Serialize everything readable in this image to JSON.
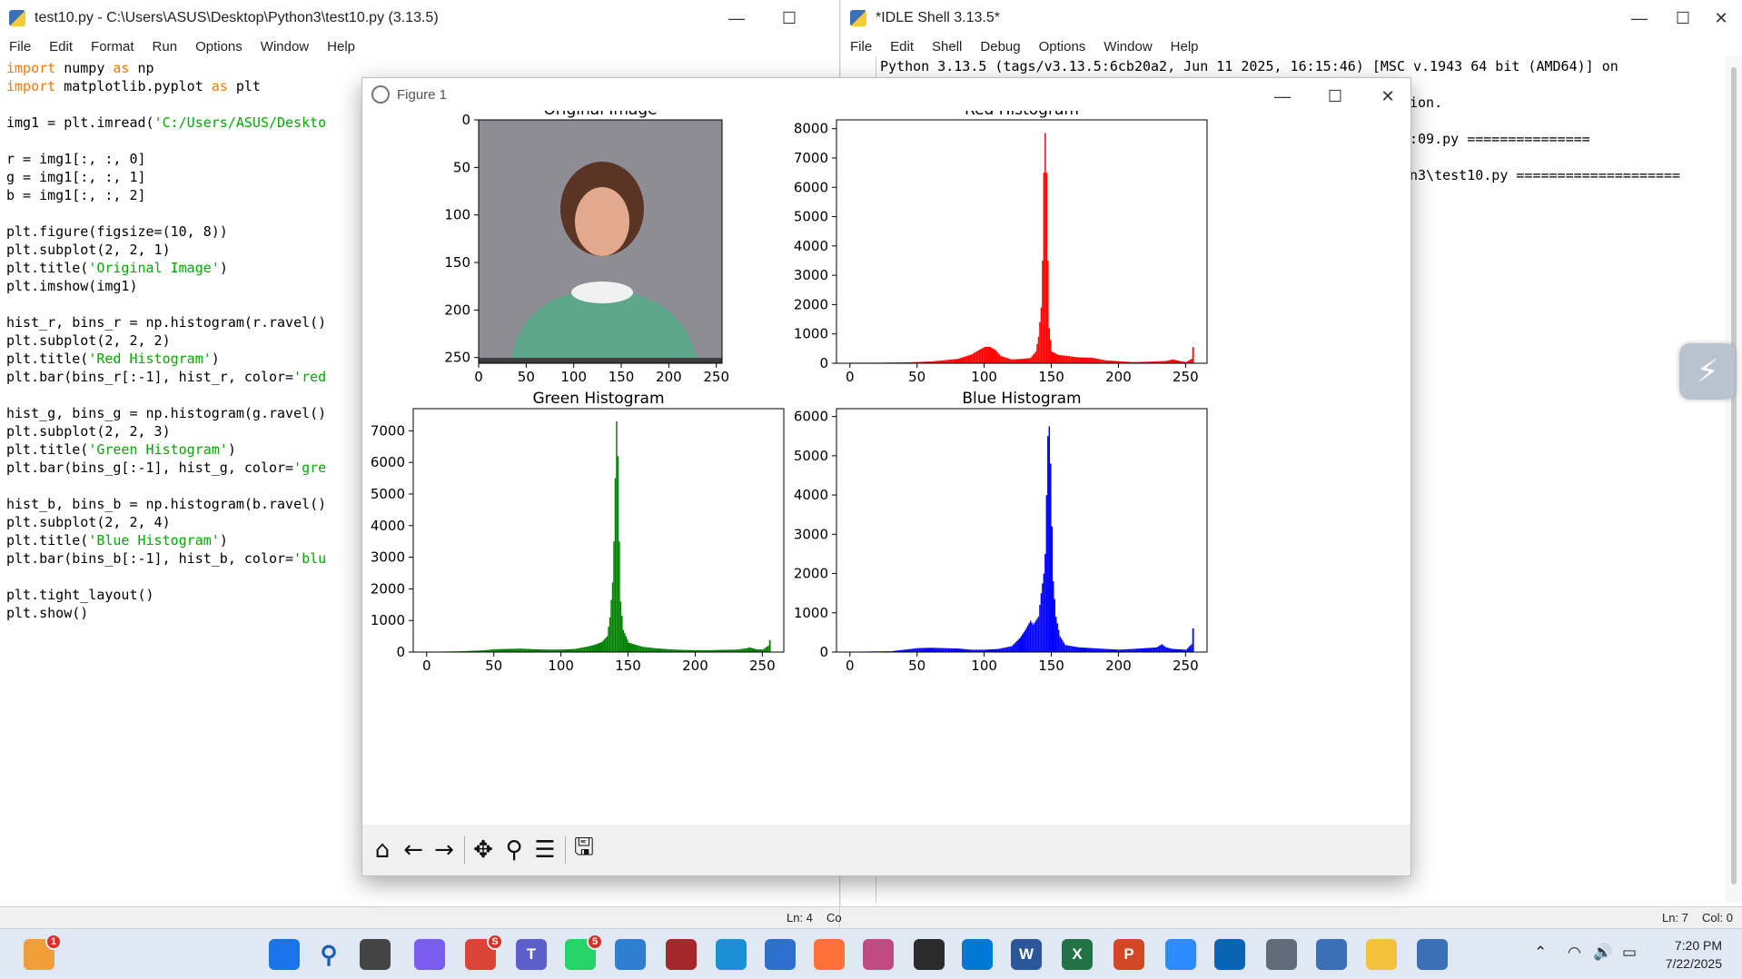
{
  "editor": {
    "title": "test10.py - C:\\Users\\ASUS\\Desktop\\Python3\\test10.py (3.13.5)",
    "menu": [
      "File",
      "Edit",
      "Format",
      "Run",
      "Options",
      "Window",
      "Help"
    ],
    "code_lines": [
      [
        {
          "t": "import",
          "c": "kw"
        },
        {
          "t": " numpy "
        },
        {
          "t": "as",
          "c": "kw"
        },
        {
          "t": " np"
        }
      ],
      [
        {
          "t": "import",
          "c": "kw"
        },
        {
          "t": " matplotlib.pyplot "
        },
        {
          "t": "as",
          "c": "kw"
        },
        {
          "t": " plt"
        }
      ],
      [],
      [
        {
          "t": "img1 = plt.imread("
        },
        {
          "t": "'C:/Users/ASUS/Deskto",
          "c": "str"
        }
      ],
      [],
      [
        {
          "t": "r = img1[:, :, 0]"
        }
      ],
      [
        {
          "t": "g = img1[:, :, 1]"
        }
      ],
      [
        {
          "t": "b = img1[:, :, 2]"
        }
      ],
      [],
      [
        {
          "t": "plt.figure(figsize=(10, 8))"
        }
      ],
      [
        {
          "t": "plt.subplot(2, 2, 1)"
        }
      ],
      [
        {
          "t": "plt.title("
        },
        {
          "t": "'Original Image'",
          "c": "str"
        },
        {
          "t": ")"
        }
      ],
      [
        {
          "t": "plt.imshow(img1)"
        }
      ],
      [],
      [
        {
          "t": "hist_r, bins_r = np.histogram(r.ravel()"
        }
      ],
      [
        {
          "t": "plt.subplot(2, 2, 2)"
        }
      ],
      [
        {
          "t": "plt.title("
        },
        {
          "t": "'Red Histogram'",
          "c": "str"
        },
        {
          "t": ")"
        }
      ],
      [
        {
          "t": "plt.bar(bins_r[:-1], hist_r, color="
        },
        {
          "t": "'red",
          "c": "str"
        }
      ],
      [],
      [
        {
          "t": "hist_g, bins_g = np.histogram(g.ravel()"
        }
      ],
      [
        {
          "t": "plt.subplot(2, 2, 3)"
        }
      ],
      [
        {
          "t": "plt.title("
        },
        {
          "t": "'Green Histogram'",
          "c": "str"
        },
        {
          "t": ")"
        }
      ],
      [
        {
          "t": "plt.bar(bins_g[:-1], hist_g, color="
        },
        {
          "t": "'gre",
          "c": "str"
        }
      ],
      [],
      [
        {
          "t": "hist_b, bins_b = np.histogram(b.ravel()"
        }
      ],
      [
        {
          "t": "plt.subplot(2, 2, 4)"
        }
      ],
      [
        {
          "t": "plt.title("
        },
        {
          "t": "'Blue Histogram'",
          "c": "str"
        },
        {
          "t": ")"
        }
      ],
      [
        {
          "t": "plt.bar(bins_b[:-1], hist_b, color="
        },
        {
          "t": "'blu",
          "c": "str"
        }
      ],
      [],
      [
        {
          "t": "plt.tight_layout()"
        }
      ],
      [
        {
          "t": "plt.show()"
        }
      ]
    ],
    "status_ln": "Ln: 4",
    "status_col": "Co"
  },
  "shell": {
    "title": "*IDLE Shell 3.13.5*",
    "menu": [
      "File",
      "Edit",
      "Shell",
      "Debug",
      "Options",
      "Window",
      "Help"
    ],
    "lines": [
      "Python 3.13.5 (tags/v3.13.5:6cb20a2, Jun 11 2025, 16:15:46) [MSC v.1943 64 bit (AMD64)] on",
      "ion.",
      ":09.py ===============",
      "n3\\test10.py ===================="
    ],
    "status_ln": "Ln: 7",
    "status_col": "Col: 0"
  },
  "figure": {
    "title": "Figure 1",
    "toolbar": [
      "home-icon",
      "back-icon",
      "forward-icon",
      "pan-icon",
      "zoom-icon",
      "configure-icon",
      "save-icon"
    ]
  },
  "chart_data": [
    {
      "type": "image",
      "title": "Original Image",
      "xlim": [
        0,
        256
      ],
      "ylim": [
        256,
        0
      ],
      "xticks": [
        0,
        50,
        100,
        150,
        200,
        250
      ],
      "yticks": [
        0,
        50,
        100,
        150,
        200,
        250
      ]
    },
    {
      "type": "bar",
      "title": "Red Histogram",
      "color": "#ff0000",
      "xlim": [
        -10,
        266
      ],
      "ylim": [
        0,
        8300
      ],
      "xticks": [
        0,
        50,
        100,
        150,
        200,
        250
      ],
      "yticks": [
        0,
        1000,
        2000,
        3000,
        4000,
        5000,
        6000,
        7000,
        8000
      ],
      "points": [
        [
          0,
          20
        ],
        [
          20,
          20
        ],
        [
          40,
          30
        ],
        [
          60,
          60
        ],
        [
          80,
          150
        ],
        [
          90,
          300
        ],
        [
          96,
          460
        ],
        [
          100,
          560
        ],
        [
          104,
          560
        ],
        [
          108,
          450
        ],
        [
          112,
          250
        ],
        [
          120,
          130
        ],
        [
          128,
          150
        ],
        [
          134,
          180
        ],
        [
          138,
          400
        ],
        [
          140,
          900
        ],
        [
          142,
          1900
        ],
        [
          143,
          3500
        ],
        [
          144,
          6500
        ],
        [
          145,
          7850
        ],
        [
          146,
          6500
        ],
        [
          147,
          3500
        ],
        [
          148,
          1200
        ],
        [
          150,
          400
        ],
        [
          155,
          280
        ],
        [
          160,
          260
        ],
        [
          170,
          200
        ],
        [
          180,
          190
        ],
        [
          190,
          100
        ],
        [
          200,
          70
        ],
        [
          210,
          40
        ],
        [
          220,
          50
        ],
        [
          235,
          80
        ],
        [
          240,
          130
        ],
        [
          245,
          80
        ],
        [
          250,
          40
        ],
        [
          254,
          150
        ],
        [
          255,
          550
        ]
      ]
    },
    {
      "type": "bar",
      "title": "Green Histogram",
      "color": "#008000",
      "xlim": [
        -10,
        266
      ],
      "ylim": [
        0,
        7700
      ],
      "xticks": [
        0,
        50,
        100,
        150,
        200,
        250
      ],
      "yticks": [
        0,
        1000,
        2000,
        3000,
        4000,
        5000,
        6000,
        7000
      ],
      "points": [
        [
          0,
          10
        ],
        [
          20,
          20
        ],
        [
          40,
          50
        ],
        [
          50,
          90
        ],
        [
          60,
          100
        ],
        [
          70,
          110
        ],
        [
          80,
          90
        ],
        [
          90,
          80
        ],
        [
          100,
          80
        ],
        [
          110,
          100
        ],
        [
          120,
          180
        ],
        [
          126,
          250
        ],
        [
          130,
          320
        ],
        [
          134,
          500
        ],
        [
          136,
          1100
        ],
        [
          138,
          2200
        ],
        [
          139,
          3500
        ],
        [
          140,
          5500
        ],
        [
          141,
          7300
        ],
        [
          142,
          6200
        ],
        [
          143,
          3500
        ],
        [
          144,
          1600
        ],
        [
          146,
          700
        ],
        [
          150,
          300
        ],
        [
          160,
          170
        ],
        [
          170,
          120
        ],
        [
          180,
          90
        ],
        [
          190,
          70
        ],
        [
          200,
          60
        ],
        [
          210,
          60
        ],
        [
          220,
          70
        ],
        [
          230,
          80
        ],
        [
          238,
          120
        ],
        [
          240,
          150
        ],
        [
          245,
          90
        ],
        [
          250,
          80
        ],
        [
          254,
          200
        ],
        [
          255,
          380
        ]
      ]
    },
    {
      "type": "bar",
      "title": "Blue Histogram",
      "color": "#0000ff",
      "xlim": [
        -10,
        266
      ],
      "ylim": [
        0,
        6200
      ],
      "xticks": [
        0,
        50,
        100,
        150,
        200,
        250
      ],
      "yticks": [
        0,
        1000,
        2000,
        3000,
        4000,
        5000,
        6000
      ],
      "points": [
        [
          0,
          10
        ],
        [
          30,
          20
        ],
        [
          45,
          80
        ],
        [
          50,
          100
        ],
        [
          60,
          110
        ],
        [
          70,
          100
        ],
        [
          80,
          90
        ],
        [
          90,
          60
        ],
        [
          100,
          60
        ],
        [
          110,
          80
        ],
        [
          120,
          150
        ],
        [
          126,
          350
        ],
        [
          130,
          550
        ],
        [
          134,
          800
        ],
        [
          136,
          700
        ],
        [
          140,
          900
        ],
        [
          142,
          1500
        ],
        [
          144,
          2000
        ],
        [
          145,
          2500
        ],
        [
          146,
          4000
        ],
        [
          147,
          5500
        ],
        [
          148,
          5750
        ],
        [
          149,
          4800
        ],
        [
          150,
          3200
        ],
        [
          151,
          1800
        ],
        [
          153,
          900
        ],
        [
          156,
          400
        ],
        [
          160,
          180
        ],
        [
          170,
          120
        ],
        [
          180,
          100
        ],
        [
          190,
          80
        ],
        [
          200,
          60
        ],
        [
          210,
          80
        ],
        [
          220,
          100
        ],
        [
          228,
          120
        ],
        [
          232,
          200
        ],
        [
          235,
          120
        ],
        [
          240,
          80
        ],
        [
          250,
          60
        ],
        [
          254,
          200
        ],
        [
          255,
          600
        ]
      ]
    }
  ],
  "taskbar": {
    "icons": [
      {
        "name": "widgets-icon",
        "label": "",
        "color": "#f29d38",
        "badge": "1"
      },
      {
        "name": "start-icon",
        "label": "",
        "color": "#1a73e8"
      },
      {
        "name": "search-icon",
        "label": "",
        "color": "#dfe8f3"
      },
      {
        "name": "task-view-icon",
        "label": "",
        "color": "#444444"
      },
      {
        "name": "copilot-icon",
        "label": "",
        "color": "#7b5cf0"
      },
      {
        "name": "chrome-icon",
        "label": "",
        "color": "#db4437",
        "badge": "S"
      },
      {
        "name": "teams-icon",
        "label": "T",
        "color": "#5b5fc7"
      },
      {
        "name": "whatsapp-icon",
        "label": "",
        "color": "#25d366",
        "badge": "5"
      },
      {
        "name": "photos-icon",
        "label": "",
        "color": "#2e7fd1"
      },
      {
        "name": "winrar-icon",
        "label": "",
        "color": "#a4282a"
      },
      {
        "name": "edge-icon",
        "label": "",
        "color": "#1b8fd6"
      },
      {
        "name": "vs-icon",
        "label": "",
        "color": "#2d6fcf"
      },
      {
        "name": "firefox-icon",
        "label": "",
        "color": "#ff7139"
      },
      {
        "name": "snipping-icon",
        "label": "",
        "color": "#c24a83"
      },
      {
        "name": "terminal-icon",
        "label": "",
        "color": "#2b2b2b"
      },
      {
        "name": "vscode-icon",
        "label": "",
        "color": "#0078d4"
      },
      {
        "name": "word-icon",
        "label": "W",
        "color": "#2b579a"
      },
      {
        "name": "excel-icon",
        "label": "X",
        "color": "#217346"
      },
      {
        "name": "powerpoint-icon",
        "label": "P",
        "color": "#d24726"
      },
      {
        "name": "zoom-icon",
        "label": "",
        "color": "#2d8cff"
      },
      {
        "name": "outlook-icon",
        "label": "",
        "color": "#0a64b6"
      },
      {
        "name": "settings-icon",
        "label": "",
        "color": "#5f6b78"
      },
      {
        "name": "python-icon",
        "label": "",
        "color": "#3b6fb6"
      },
      {
        "name": "file-explorer-icon",
        "label": "",
        "color": "#f3c23c"
      },
      {
        "name": "idle-icon",
        "label": "",
        "color": "#3b6fb6"
      }
    ],
    "time": "7:20 PM",
    "date": "7/22/2025"
  }
}
